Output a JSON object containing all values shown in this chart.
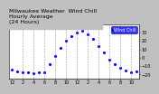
{
  "title": "Milwaukee Weather  Wind Chill\nHourly Average\n(24 Hours)",
  "bg_color": "#c0c0c0",
  "plot_bg": "#ffffff",
  "dot_color": "#0000ff",
  "legend_color": "#0000ff",
  "legend_text_color": "#ffffff",
  "x_hours": [
    0,
    1,
    2,
    3,
    4,
    5,
    6,
    7,
    8,
    9,
    10,
    11,
    12,
    13,
    14,
    15,
    16,
    17,
    18,
    19,
    20,
    21,
    22,
    23
  ],
  "y_values": [
    -14,
    -16,
    -17,
    -18,
    -19,
    -18,
    -17,
    -8,
    2,
    12,
    20,
    26,
    30,
    32,
    28,
    22,
    14,
    6,
    -2,
    -8,
    -12,
    -15,
    -18,
    -16
  ],
  "ylim": [
    -25,
    40
  ],
  "xlim": [
    -0.5,
    23.5
  ],
  "yticks": [
    -20,
    -10,
    0,
    10,
    20,
    30
  ],
  "grid_positions": [
    2,
    4,
    6,
    8,
    10,
    12,
    14,
    16,
    18,
    20,
    22
  ],
  "title_fontsize": 4.5,
  "tick_fontsize": 3.5,
  "marker_size": 1.2,
  "legend_label": "Wind Chill",
  "legend_fontsize": 3.5
}
